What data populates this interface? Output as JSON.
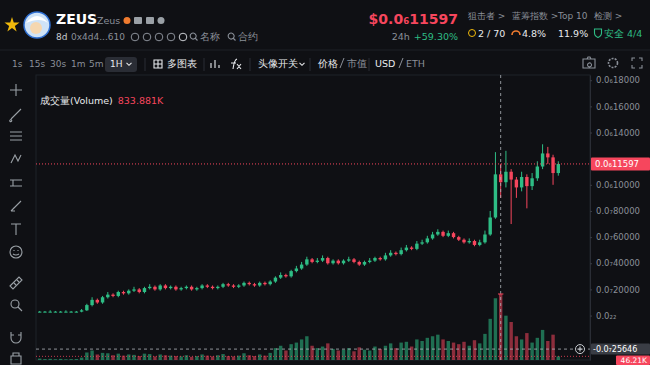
{
  "header": {
    "symbol": "ZEUS",
    "name": "Zeus",
    "age": "8d",
    "address": "0x4d4...610",
    "links": [
      "名称",
      "合约"
    ],
    "price": "$0.0₆11597",
    "change_label": "24h",
    "change": "+59.30%",
    "stats": [
      {
        "label": "狙击者 >",
        "value": "2 / 70"
      },
      {
        "label": "蓝筹指数 >",
        "value": "4.8%"
      },
      {
        "label": "Top 10",
        "value": "11.9%"
      },
      {
        "label": "检测 >",
        "value": "安全 4/4"
      }
    ]
  },
  "toolbar": {
    "intervals": [
      "1s",
      "15s",
      "30s",
      "1m",
      "5m",
      "1H"
    ],
    "multi_chart": "多图表",
    "avatar_toggle": "头像开关",
    "price": "价格",
    "market_cap": "市值",
    "usd": "USD",
    "eth": "ETH"
  },
  "chart_data": {
    "type": "candlestick",
    "categories": [
      null,
      null,
      null,
      null,
      null,
      null,
      null,
      null,
      null,
      null,
      null,
      null,
      null,
      null,
      null,
      null,
      null,
      null,
      null,
      null,
      null,
      null,
      null,
      null,
      null,
      null,
      null,
      null,
      null,
      null,
      null,
      null,
      null,
      null,
      null,
      null,
      null,
      null,
      null,
      null,
      null,
      null,
      null,
      null,
      null,
      null,
      null,
      null,
      null,
      null,
      null,
      null,
      null,
      null,
      null,
      null,
      null,
      null,
      null,
      null,
      null,
      null,
      null,
      null,
      null,
      null,
      null,
      null,
      null,
      null,
      null,
      null,
      null,
      null,
      null,
      null,
      null,
      null,
      null,
      null,
      null,
      null,
      null,
      null,
      null,
      null,
      null,
      null,
      null,
      null,
      null,
      null,
      null,
      null,
      null,
      null,
      null,
      null,
      null,
      null
    ],
    "open": [
      3e-09,
      3e-09,
      3e-09,
      3e-09,
      3e-09,
      3e-09,
      3e-09,
      3e-09,
      3e-09,
      4e-09,
      8e-09,
      1.2e-08,
      1e-08,
      1.4e-08,
      1.6e-08,
      1.5e-08,
      1.8e-08,
      1.7e-08,
      1.9e-08,
      2e-08,
      1.8e-08,
      2.1e-08,
      2.2e-08,
      2e-08,
      2.3e-08,
      2.1e-08,
      2.2e-08,
      2e-08,
      2.1e-08,
      2.2e-08,
      2e-08,
      2.1e-08,
      2.3e-08,
      2.2e-08,
      2.1e-08,
      2.2e-08,
      2.4e-08,
      2.3e-08,
      2.2e-08,
      2.3e-08,
      2.5e-08,
      2.4e-08,
      2.3e-08,
      2.5e-08,
      2.4e-08,
      2.6e-08,
      2.9e-08,
      3.1e-08,
      3e-08,
      3.4e-08,
      3.6e-08,
      3.9e-08,
      4.3e-08,
      4.1e-08,
      4.2e-08,
      4.4e-08,
      4e-08,
      4.2e-08,
      4e-08,
      4.2e-08,
      4.3e-08,
      4.1e-08,
      3.9e-08,
      4.1e-08,
      4.2e-08,
      4.4e-08,
      4.3e-08,
      4.6e-08,
      4.8e-08,
      4.7e-08,
      5e-08,
      5.2e-08,
      5.1e-08,
      5.5e-08,
      5.6e-08,
      5.9e-08,
      6.2e-08,
      6.4e-08,
      6.1e-08,
      6.3e-08,
      6e-08,
      5.8e-08,
      5.6e-08,
      5.7e-08,
      5.4e-08,
      5.6e-08,
      6.2e-08,
      7.5e-08,
      1.08e-07,
      1.02e-07,
      1.1e-07,
      1.04e-07,
      9.8e-08,
      1.06e-07,
      9.9e-08,
      1.05e-07,
      1.14e-07,
      1.24e-07,
      1.21e-07,
      1.09e-07
    ],
    "high": [
      3.5e-09,
      3.5e-09,
      4e-09,
      3.5e-09,
      3.5e-09,
      4e-09,
      3.5e-09,
      3.5e-09,
      5e-09,
      9e-09,
      1.4e-08,
      1.3e-08,
      1.5e-08,
      1.8e-08,
      1.7e-08,
      1.9e-08,
      1.9e-08,
      2e-08,
      2.2e-08,
      2.1e-08,
      2.2e-08,
      2.4e-08,
      2.3e-08,
      2.4e-08,
      2.4e-08,
      2.3e-08,
      2.3e-08,
      2.2e-08,
      2.3e-08,
      2.3e-08,
      2.2e-08,
      2.4e-08,
      2.4e-08,
      2.3e-08,
      2.3e-08,
      2.5e-08,
      2.5e-08,
      2.4e-08,
      2.4e-08,
      2.6e-08,
      2.6e-08,
      2.5e-08,
      2.6e-08,
      2.6e-08,
      2.7e-08,
      3e-08,
      3.3e-08,
      3.2e-08,
      3.5e-08,
      3.8e-08,
      4.1e-08,
      4.5e-08,
      4.4e-08,
      4.4e-08,
      4.6e-08,
      4.5e-08,
      4.3e-08,
      4.3e-08,
      4.3e-08,
      4.5e-08,
      4.4e-08,
      4.2e-08,
      4.2e-08,
      4.4e-08,
      4.5e-08,
      4.5e-08,
      4.8e-08,
      5e-08,
      4.9e-08,
      5.2e-08,
      5.4e-08,
      5.3e-08,
      5.7e-08,
      5.8e-08,
      6.1e-08,
      6.4e-08,
      6.6e-08,
      6.5e-08,
      6.5e-08,
      6.4e-08,
      6.1e-08,
      5.9e-08,
      5.9e-08,
      5.8e-08,
      5.8e-08,
      6.5e-08,
      8e-08,
      1.25e-07,
      1.16e-07,
      1.26e-07,
      1.12e-07,
      1.06e-07,
      1.1e-07,
      1.08e-07,
      1.09e-07,
      1.18e-07,
      1.31e-07,
      1.29e-07,
      1.23e-07,
      1.18e-07
    ],
    "low": [
      2.5e-09,
      2.5e-09,
      2.5e-09,
      2.5e-09,
      2.5e-09,
      2.5e-09,
      2.5e-09,
      2.5e-09,
      2.5e-09,
      3.5e-09,
      7e-09,
      9e-09,
      9e-09,
      1.3e-08,
      1.4e-08,
      1.4e-08,
      1.6e-08,
      1.6e-08,
      1.8e-08,
      1.7e-08,
      1.7e-08,
      2e-08,
      1.9e-08,
      1.9e-08,
      2e-08,
      2e-08,
      1.9e-08,
      1.9e-08,
      2e-08,
      1.9e-08,
      1.9e-08,
      2e-08,
      2.1e-08,
      2e-08,
      2e-08,
      2.1e-08,
      2.2e-08,
      2.1e-08,
      2.1e-08,
      2.2e-08,
      2.3e-08,
      2.2e-08,
      2.2e-08,
      2.3e-08,
      2.3e-08,
      2.5e-08,
      2.8e-08,
      2.9e-08,
      2.9e-08,
      3.3e-08,
      3.5e-08,
      3.8e-08,
      4e-08,
      4e-08,
      4.1e-08,
      3.9e-08,
      3.9e-08,
      3.9e-08,
      3.9e-08,
      4.1e-08,
      4e-08,
      3.8e-08,
      3.8e-08,
      4e-08,
      4.1e-08,
      4.2e-08,
      4.2e-08,
      4.5e-08,
      4.6e-08,
      4.6e-08,
      4.9e-08,
      5e-08,
      5e-08,
      5.4e-08,
      5.5e-08,
      5.8e-08,
      6.1e-08,
      6e-08,
      6e-08,
      5.9e-08,
      5.7e-08,
      5.5e-08,
      5.5e-08,
      5.3e-08,
      5.3e-08,
      5.5e-08,
      6.1e-08,
      7.4e-08,
      9e-08,
      9.8e-08,
      7e-08,
      9e-08,
      9.5e-08,
      8.2e-08,
      9.6e-08,
      1.03e-07,
      1.12e-07,
      1.16e-07,
      1e-07,
      1.07e-07
    ],
    "close": [
      3e-09,
      3e-09,
      3e-09,
      3e-09,
      3e-09,
      3e-09,
      3e-09,
      3e-09,
      4e-09,
      8e-09,
      1.2e-08,
      1e-08,
      1.4e-08,
      1.6e-08,
      1.5e-08,
      1.8e-08,
      1.7e-08,
      1.9e-08,
      2e-08,
      1.8e-08,
      2.1e-08,
      2.2e-08,
      2e-08,
      2.3e-08,
      2.1e-08,
      2.2e-08,
      2e-08,
      2.1e-08,
      2.2e-08,
      2e-08,
      2.1e-08,
      2.3e-08,
      2.2e-08,
      2.1e-08,
      2.2e-08,
      2.4e-08,
      2.3e-08,
      2.2e-08,
      2.3e-08,
      2.5e-08,
      2.4e-08,
      2.3e-08,
      2.5e-08,
      2.4e-08,
      2.6e-08,
      2.9e-08,
      3.1e-08,
      3e-08,
      3.4e-08,
      3.6e-08,
      3.9e-08,
      4.3e-08,
      4.1e-08,
      4.2e-08,
      4.4e-08,
      4e-08,
      4.2e-08,
      4e-08,
      4.2e-08,
      4.3e-08,
      4.1e-08,
      3.9e-08,
      4.1e-08,
      4.2e-08,
      4.4e-08,
      4.3e-08,
      4.6e-08,
      4.8e-08,
      4.7e-08,
      5e-08,
      5.2e-08,
      5.1e-08,
      5.5e-08,
      5.6e-08,
      5.9e-08,
      6.2e-08,
      6.4e-08,
      6.1e-08,
      6.3e-08,
      6e-08,
      5.8e-08,
      5.6e-08,
      5.7e-08,
      5.4e-08,
      5.6e-08,
      6.2e-08,
      7.5e-08,
      1.08e-07,
      1.02e-07,
      1.1e-07,
      1.04e-07,
      9.8e-08,
      1.06e-07,
      9.9e-08,
      1.05e-07,
      1.14e-07,
      1.24e-07,
      1.21e-07,
      1.09e-07,
      1.1597e-07
    ],
    "volume": {
      "axis": "y2",
      "values": [
        18000,
        12000,
        15000,
        10000,
        14000,
        9000,
        11000,
        13000,
        30000,
        95000,
        120000,
        70000,
        90000,
        85000,
        60000,
        80000,
        55000,
        70000,
        65000,
        50000,
        80000,
        75000,
        45000,
        70000,
        60000,
        55000,
        50000,
        45000,
        60000,
        40000,
        50000,
        70000,
        55000,
        45000,
        60000,
        75000,
        50000,
        45000,
        55000,
        85000,
        60000,
        50000,
        70000,
        55000,
        90000,
        150000,
        180000,
        120000,
        200000,
        220000,
        260000,
        300000,
        180000,
        150000,
        170000,
        210000,
        140000,
        120000,
        130000,
        150000,
        110000,
        160000,
        130000,
        120000,
        170000,
        140000,
        180000,
        210000,
        150000,
        220000,
        230000,
        170000,
        260000,
        240000,
        280000,
        300000,
        320000,
        260000,
        240000,
        220000,
        200000,
        230000,
        180000,
        250000,
        210000,
        330000,
        520000,
        780000,
        833881,
        560000,
        480000,
        300000,
        260000,
        340000,
        220000,
        280000,
        380000,
        240000,
        320000,
        46210
      ]
    },
    "ylim": [
      -3.4e-08,
      1.84e-07
    ],
    "yticks": [
      {
        "value": 1.8e-07,
        "label": "0.0₆18000"
      },
      {
        "value": 1.6e-07,
        "label": "0.0₆16000"
      },
      {
        "value": 1.4e-07,
        "label": "0.0₆14000"
      },
      {
        "value": 1e-07,
        "label": "0.0₆10000"
      },
      {
        "value": 8e-08,
        "label": "0.0₇80000"
      },
      {
        "value": 6e-08,
        "label": "0.0₇60000"
      },
      {
        "value": 4e-08,
        "label": "0.0₇40000"
      },
      {
        "value": 2e-08,
        "label": "0.0₇20000"
      },
      {
        "value": 0,
        "label": "0.0₂₂"
      }
    ],
    "y2lim": [
      0,
      3600000
    ],
    "grid": false,
    "tick_labels": "y",
    "price_line": {
      "value": 1.1597e-07,
      "label": "0.0₆11597"
    },
    "crosshair": {
      "x": 88,
      "value": -2.5646e-08,
      "label": "-0.0₇25646"
    },
    "volume_readout": {
      "text": "成交量(Volume)",
      "value": 833881,
      "label": "833.881K"
    },
    "volume_marker": {
      "value": 46210,
      "label": "46.21K"
    }
  }
}
